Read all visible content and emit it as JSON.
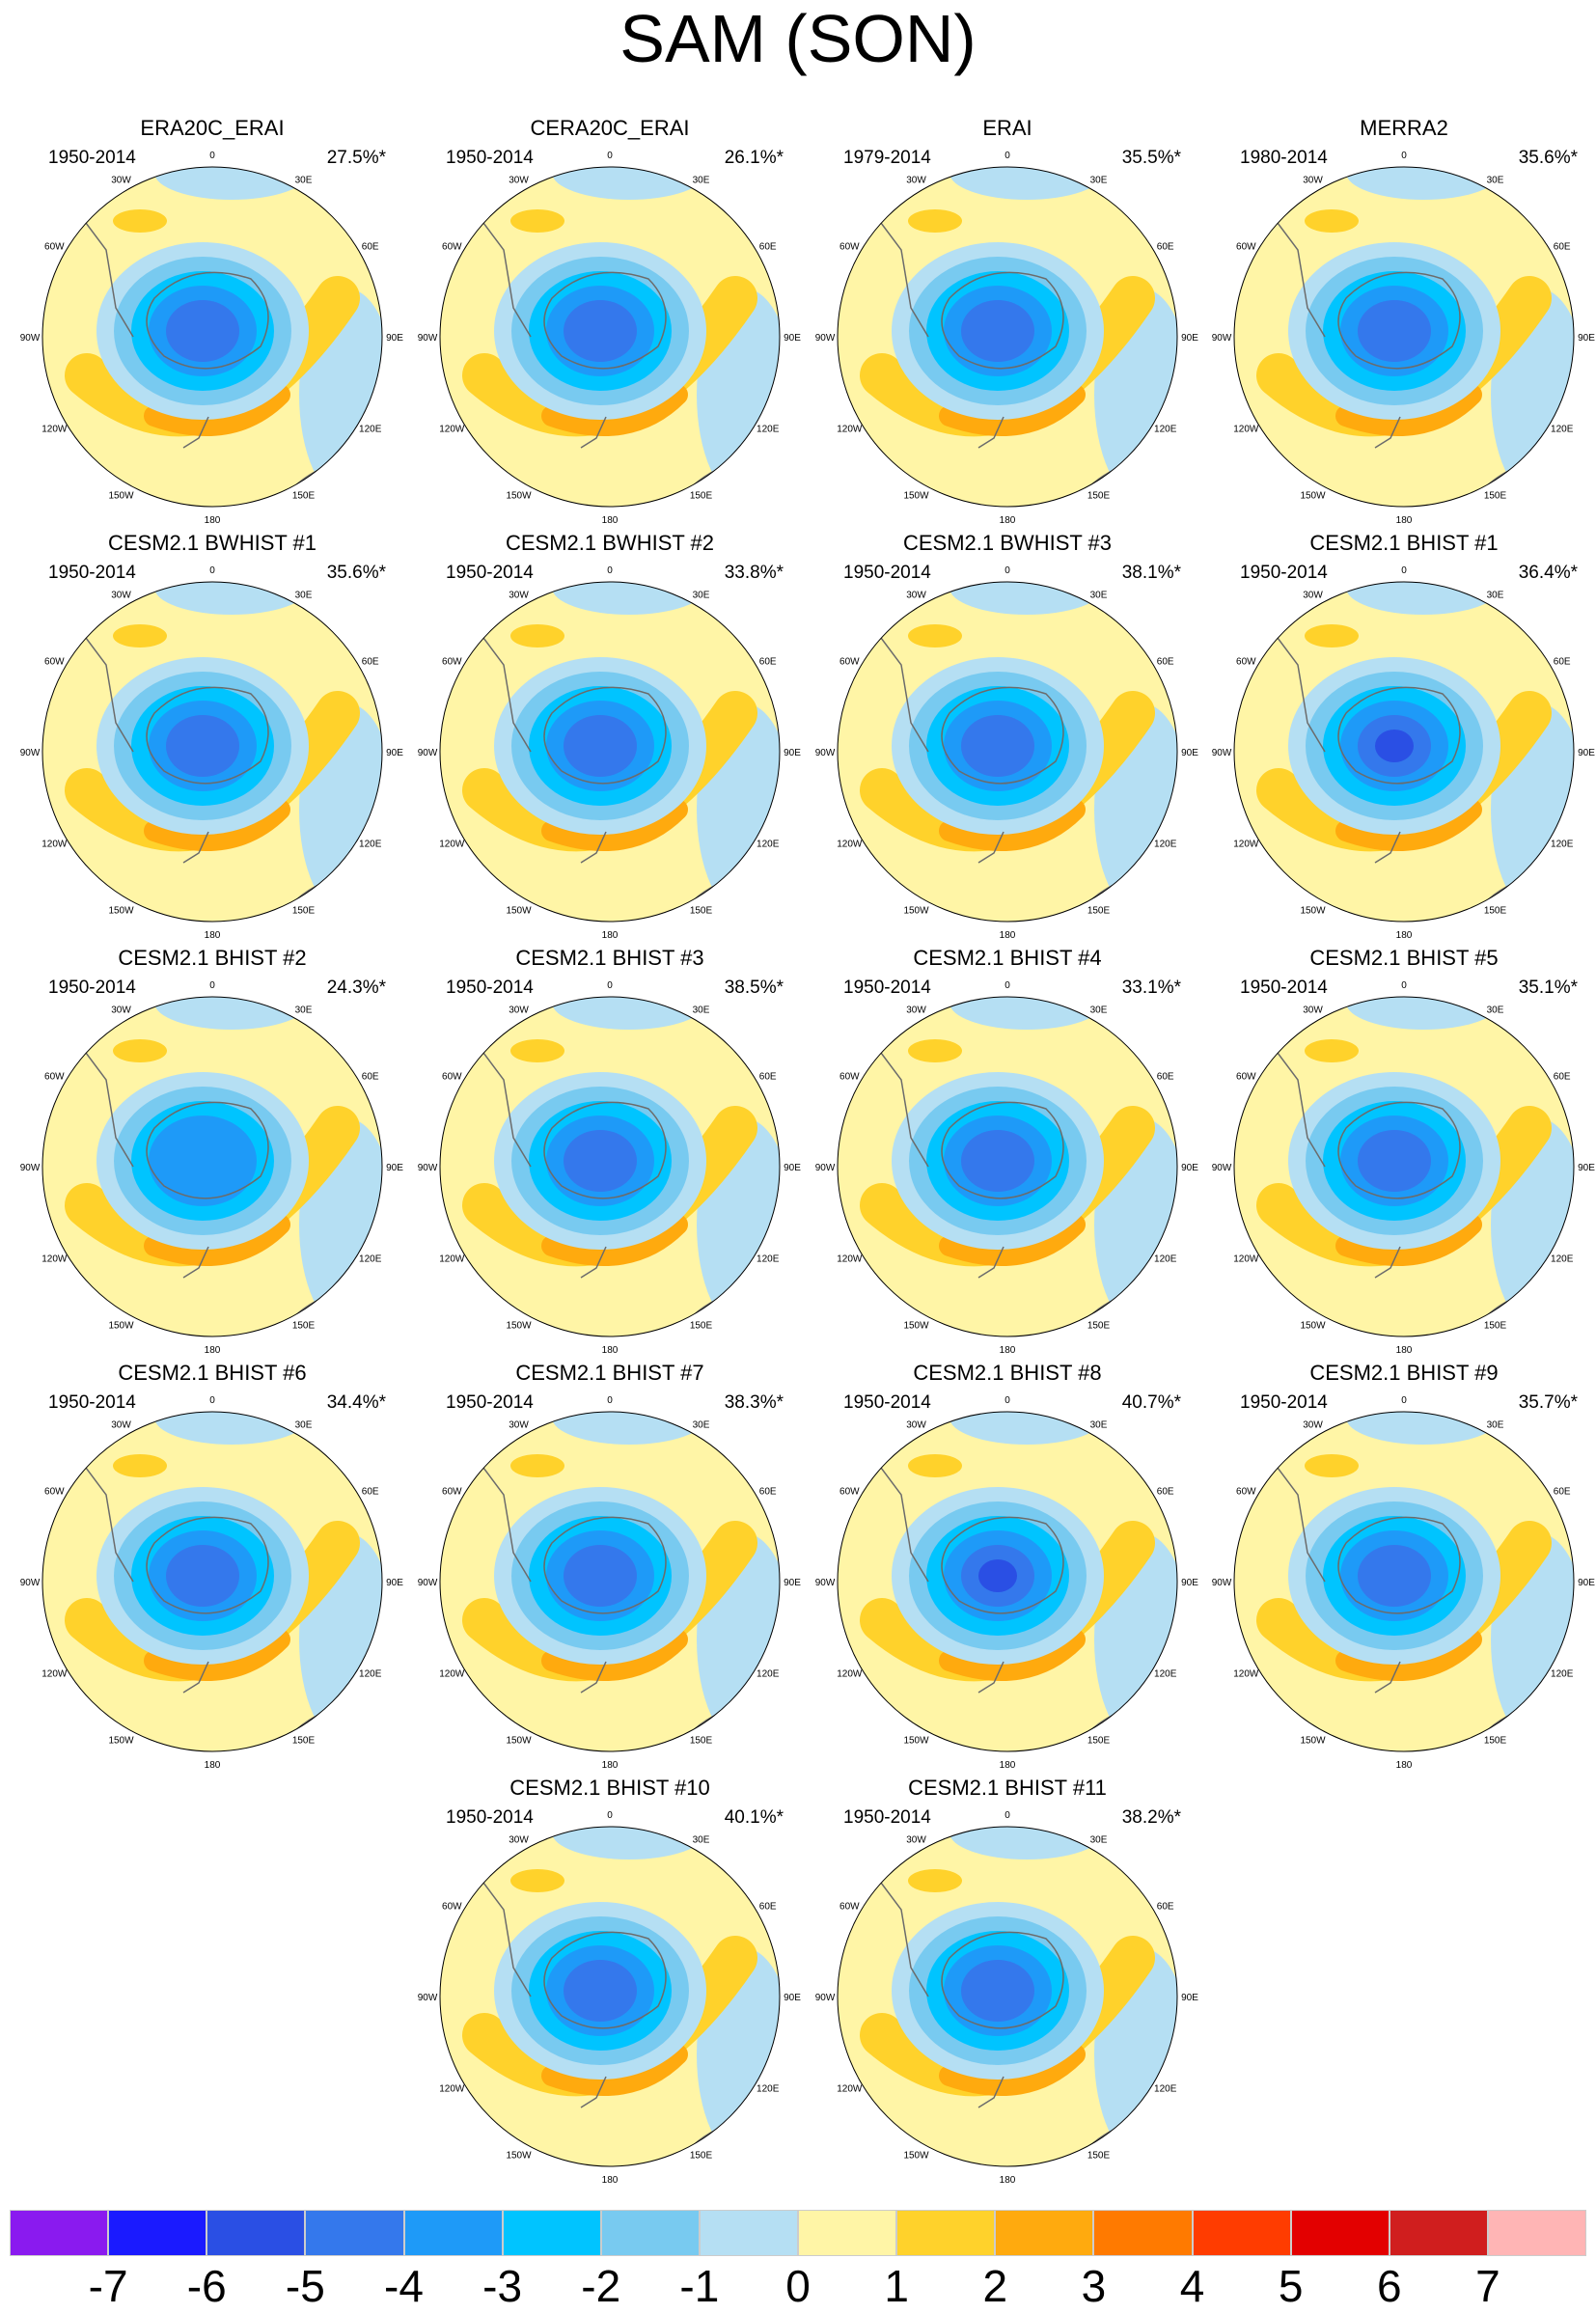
{
  "title": "SAM (SON)",
  "longitude_labels": [
    "0",
    "30E",
    "60E",
    "90E",
    "120E",
    "150E",
    "180",
    "150W",
    "120W",
    "90W",
    "60W",
    "30W"
  ],
  "colorbar": {
    "colors": [
      "#8a1aef",
      "#1a1aff",
      "#2a4fe4",
      "#3478ec",
      "#1e9af8",
      "#00c4ff",
      "#78caf0",
      "#b5dff3",
      "#fff5a6",
      "#ffd22b",
      "#ffaa0e",
      "#ff7a00",
      "#ff3c00",
      "#e30000",
      "#d01e1e",
      "#ffb5b5"
    ],
    "labels": [
      "-7",
      "-6",
      "-5",
      "-4",
      "-3",
      "-2",
      "-1",
      "0",
      "1",
      "2",
      "3",
      "4",
      "5",
      "6",
      "7"
    ]
  },
  "panels": [
    {
      "title": "ERA20C_ERAI",
      "period": "1950-2014",
      "pct": "27.5%*"
    },
    {
      "title": "CERA20C_ERAI",
      "period": "1950-2014",
      "pct": "26.1%*"
    },
    {
      "title": "ERAI",
      "period": "1979-2014",
      "pct": "35.5%*"
    },
    {
      "title": "MERRA2",
      "period": "1980-2014",
      "pct": "35.6%*"
    },
    {
      "title": "CESM2.1 BWHIST #1",
      "period": "1950-2014",
      "pct": "35.6%*"
    },
    {
      "title": "CESM2.1 BWHIST #2",
      "period": "1950-2014",
      "pct": "33.8%*"
    },
    {
      "title": "CESM2.1 BWHIST #3",
      "period": "1950-2014",
      "pct": "38.1%*"
    },
    {
      "title": "CESM2.1 BHIST #1",
      "period": "1950-2014",
      "pct": "36.4%*"
    },
    {
      "title": "CESM2.1 BHIST #2",
      "period": "1950-2014",
      "pct": "24.3%*"
    },
    {
      "title": "CESM2.1 BHIST #3",
      "period": "1950-2014",
      "pct": "38.5%*"
    },
    {
      "title": "CESM2.1 BHIST #4",
      "period": "1950-2014",
      "pct": "33.1%*"
    },
    {
      "title": "CESM2.1 BHIST #5",
      "period": "1950-2014",
      "pct": "35.1%*"
    },
    {
      "title": "CESM2.1 BHIST #6",
      "period": "1950-2014",
      "pct": "34.4%*"
    },
    {
      "title": "CESM2.1 BHIST #7",
      "period": "1950-2014",
      "pct": "38.3%*"
    },
    {
      "title": "CESM2.1 BHIST #8",
      "period": "1950-2014",
      "pct": "40.7%*"
    },
    {
      "title": "CESM2.1 BHIST #9",
      "period": "1950-2014",
      "pct": "35.7%*"
    },
    {
      "title": "CESM2.1 BHIST #10",
      "period": "1950-2014",
      "pct": "40.1%*"
    },
    {
      "title": "CESM2.1 BHIST #11",
      "period": "1950-2014",
      "pct": "38.2%*"
    }
  ]
}
